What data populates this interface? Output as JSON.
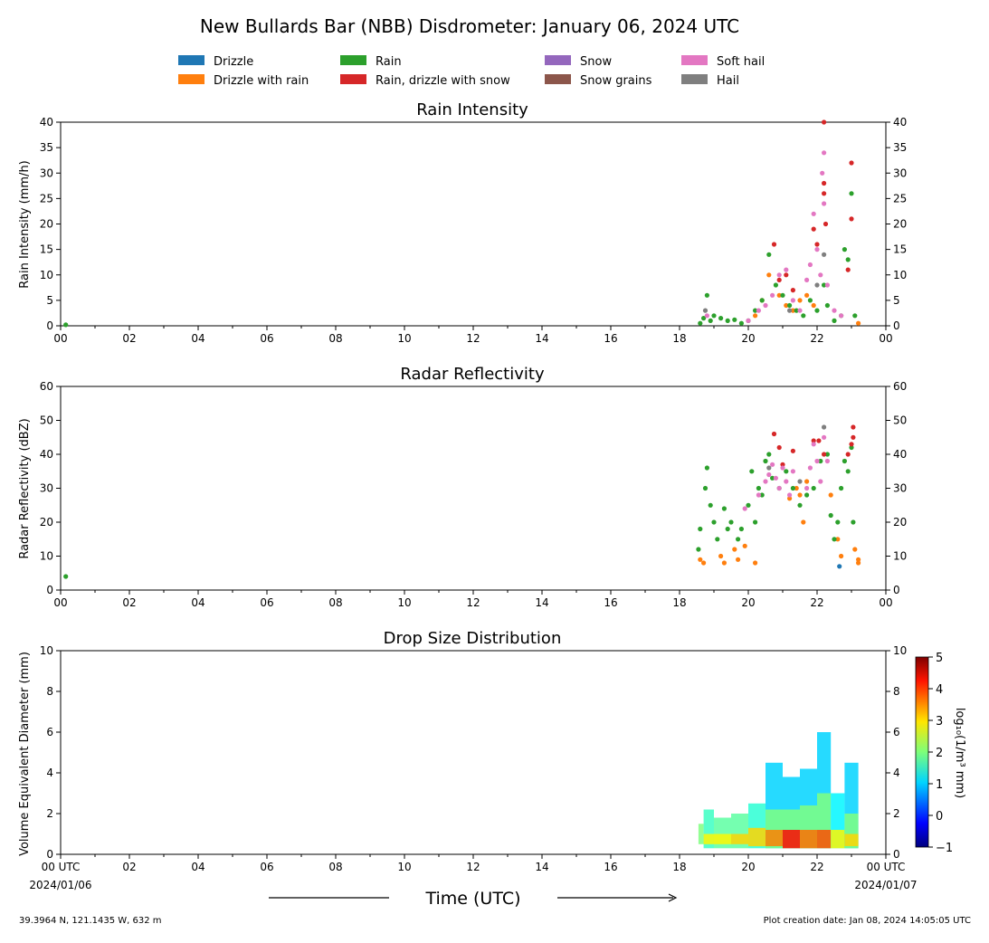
{
  "figure": {
    "title": "New Bullards Bar (NBB) Disdrometer: January 06, 2024 UTC",
    "xlabel": "Time (UTC)",
    "footer_left": "39.3964 N, 121.1435 W, 632 m",
    "footer_right": "Plot creation date: Jan 08, 2024 14:05:05 UTC"
  },
  "legend": {
    "placement": "top-center",
    "entries": [
      {
        "label": "Drizzle",
        "color": "#1f77b4"
      },
      {
        "label": "Drizzle with rain",
        "color": "#ff7f0e"
      },
      {
        "label": "Rain",
        "color": "#2ca02c"
      },
      {
        "label": "Rain, drizzle with snow",
        "color": "#d62728"
      },
      {
        "label": "Snow",
        "color": "#9467bd"
      },
      {
        "label": "Snow grains",
        "color": "#8c564b"
      },
      {
        "label": "Soft hail",
        "color": "#e377c2"
      },
      {
        "label": "Hail",
        "color": "#7f7f7f"
      }
    ]
  },
  "x_axis": {
    "range_hours": [
      0,
      24
    ],
    "tick_labels": [
      "00",
      "02",
      "04",
      "06",
      "08",
      "10",
      "12",
      "14",
      "16",
      "18",
      "20",
      "22",
      "00"
    ],
    "bottom_tick_labels": [
      "00 UTC",
      "02",
      "04",
      "06",
      "08",
      "10",
      "12",
      "14",
      "16",
      "18",
      "20",
      "22",
      "00 UTC"
    ],
    "start_date": "2024/01/06",
    "end_date": "2024/01/07"
  },
  "chart_data": [
    {
      "type": "scatter",
      "title": "Rain Intensity",
      "ylabel": "Rain Intensity (mm/h)",
      "ylim": [
        0,
        40
      ],
      "yticks": [
        0,
        5,
        10,
        15,
        20,
        25,
        30,
        35,
        40
      ],
      "x_units": "hours UTC",
      "series": [
        {
          "name": "Drizzle",
          "x": [],
          "y": []
        },
        {
          "name": "Drizzle with rain",
          "x": [
            20.2,
            20.4,
            20.6,
            20.9,
            21.1,
            21.3,
            21.5,
            21.7,
            21.9,
            23.2
          ],
          "y": [
            2,
            5,
            10,
            6,
            4,
            3,
            5,
            6,
            4,
            0.5
          ]
        },
        {
          "name": "Rain",
          "x": [
            0.15,
            18.6,
            18.7,
            18.8,
            18.9,
            19.0,
            19.2,
            19.4,
            19.6,
            19.8,
            20.0,
            20.2,
            20.4,
            20.6,
            20.8,
            21.0,
            21.2,
            21.4,
            21.6,
            21.8,
            22.0,
            22.2,
            22.3,
            22.5,
            22.7,
            22.8,
            22.9,
            23.0,
            23.1
          ],
          "y": [
            0.2,
            0.5,
            1.5,
            6,
            1,
            2,
            1.5,
            1,
            1.2,
            0.5,
            1,
            3,
            5,
            14,
            8,
            6,
            4,
            3,
            2,
            5,
            3,
            8,
            4,
            1,
            2,
            15,
            13,
            26,
            2
          ]
        },
        {
          "name": "Rain, drizzle with snow",
          "x": [
            20.75,
            20.9,
            21.1,
            21.3,
            21.9,
            22.0,
            22.2,
            22.2,
            22.2,
            22.25,
            22.9,
            23.0,
            23.0
          ],
          "y": [
            16,
            9,
            10,
            7,
            19,
            16,
            40,
            28,
            26,
            20,
            11,
            32,
            21
          ]
        },
        {
          "name": "Snow",
          "x": [],
          "y": []
        },
        {
          "name": "Snow grains",
          "x": [],
          "y": []
        },
        {
          "name": "Soft hail",
          "x": [
            18.8,
            20.0,
            20.3,
            20.5,
            20.7,
            20.9,
            21.1,
            21.3,
            21.5,
            21.7,
            21.8,
            21.9,
            22.0,
            22.1,
            22.15,
            22.2,
            22.2,
            22.3,
            22.5,
            22.7
          ],
          "y": [
            2,
            1,
            3,
            4,
            6,
            10,
            11,
            5,
            3,
            9,
            12,
            22,
            15,
            10,
            30,
            34,
            24,
            8,
            3,
            2
          ]
        },
        {
          "name": "Hail",
          "x": [
            18.75,
            21.2,
            22.0,
            22.2
          ],
          "y": [
            3,
            3,
            8,
            14
          ]
        }
      ]
    },
    {
      "type": "scatter",
      "title": "Radar Reflectivity",
      "ylabel": "Radar Reflectivity (dBZ)",
      "ylim": [
        0,
        60
      ],
      "yticks": [
        0,
        10,
        20,
        30,
        40,
        50,
        60
      ],
      "x_units": "hours UTC",
      "series": [
        {
          "name": "Drizzle",
          "x": [
            22.65
          ],
          "y": [
            7
          ]
        },
        {
          "name": "Drizzle with rain",
          "x": [
            18.6,
            18.7,
            19.2,
            19.3,
            19.6,
            19.7,
            19.9,
            20.2,
            21.2,
            21.4,
            21.5,
            21.6,
            21.7,
            22.4,
            22.6,
            22.7,
            23.1,
            23.2,
            23.2
          ],
          "y": [
            9,
            8,
            10,
            8,
            12,
            9,
            13,
            8,
            27,
            30,
            28,
            20,
            32,
            28,
            15,
            10,
            12,
            8,
            9
          ]
        },
        {
          "name": "Rain",
          "x": [
            0.15,
            18.55,
            18.6,
            18.75,
            18.8,
            18.9,
            19.0,
            19.1,
            19.3,
            19.4,
            19.5,
            19.7,
            19.8,
            20.0,
            20.1,
            20.2,
            20.3,
            20.4,
            20.5,
            20.6,
            20.7,
            20.9,
            21.1,
            21.3,
            21.5,
            21.7,
            21.9,
            22.1,
            22.3,
            22.4,
            22.5,
            22.6,
            22.7,
            22.8,
            22.9,
            23.0,
            23.05
          ],
          "y": [
            4,
            12,
            18,
            30,
            36,
            25,
            20,
            15,
            24,
            18,
            20,
            15,
            18,
            25,
            35,
            20,
            30,
            28,
            38,
            40,
            33,
            30,
            35,
            30,
            25,
            28,
            30,
            38,
            40,
            22,
            15,
            20,
            30,
            38,
            35,
            42,
            20
          ]
        },
        {
          "name": "Rain, drizzle with snow",
          "x": [
            20.75,
            20.9,
            21.0,
            21.3,
            21.9,
            22.05,
            22.2,
            22.9,
            23.0,
            23.05,
            23.05
          ],
          "y": [
            46,
            42,
            37,
            41,
            44,
            44,
            40,
            40,
            43,
            48,
            45
          ]
        },
        {
          "name": "Snow",
          "x": [],
          "y": []
        },
        {
          "name": "Snow grains",
          "x": [],
          "y": []
        },
        {
          "name": "Soft hail",
          "x": [
            19.9,
            20.3,
            20.5,
            20.6,
            20.7,
            20.8,
            20.9,
            21.0,
            21.1,
            21.2,
            21.3,
            21.7,
            21.8,
            21.9,
            22.0,
            22.1,
            22.2,
            22.3
          ],
          "y": [
            24,
            28,
            32,
            34,
            37,
            33,
            30,
            36,
            32,
            28,
            35,
            30,
            36,
            43,
            38,
            32,
            45,
            38
          ]
        },
        {
          "name": "Hail",
          "x": [
            20.6,
            21.5,
            22.2
          ],
          "y": [
            36,
            32,
            48
          ]
        }
      ]
    },
    {
      "type": "heatmap",
      "title": "Drop Size Distribution",
      "ylabel": "Volume Equivalent Diameter (mm)",
      "ylim": [
        0,
        10
      ],
      "yticks": [
        0,
        2,
        4,
        6,
        8,
        10
      ],
      "x_units": "hours UTC",
      "colorbar": {
        "label": "log₁₀(1/m³ mm)",
        "range": [
          -1,
          5
        ],
        "ticks": [
          "5",
          "4",
          "3",
          "2",
          "1",
          "0",
          "−1"
        ],
        "colormap": "jet"
      },
      "cells": [
        {
          "x0": 18.55,
          "x1": 18.7,
          "y0": 0.5,
          "y1": 1.5,
          "v": 2.0
        },
        {
          "x0": 18.7,
          "x1": 19.0,
          "y0": 0.3,
          "y1": 2.2,
          "v": 1.6
        },
        {
          "x0": 18.7,
          "x1": 19.0,
          "y0": 0.5,
          "y1": 1.0,
          "v": 2.8
        },
        {
          "x0": 19.0,
          "x1": 19.5,
          "y0": 0.3,
          "y1": 1.8,
          "v": 1.8
        },
        {
          "x0": 19.0,
          "x1": 19.5,
          "y0": 0.5,
          "y1": 1.0,
          "v": 2.8
        },
        {
          "x0": 19.5,
          "x1": 20.0,
          "y0": 0.3,
          "y1": 2.0,
          "v": 1.8
        },
        {
          "x0": 19.5,
          "x1": 20.0,
          "y0": 0.5,
          "y1": 1.0,
          "v": 3.0
        },
        {
          "x0": 20.0,
          "x1": 20.5,
          "y0": 0.3,
          "y1": 2.5,
          "v": 1.5
        },
        {
          "x0": 20.0,
          "x1": 20.5,
          "y0": 0.4,
          "y1": 1.3,
          "v": 3.0
        },
        {
          "x0": 20.5,
          "x1": 21.0,
          "y0": 0.3,
          "y1": 4.5,
          "v": 1.0
        },
        {
          "x0": 20.5,
          "x1": 21.0,
          "y0": 0.3,
          "y1": 2.2,
          "v": 2.0
        },
        {
          "x0": 20.5,
          "x1": 21.0,
          "y0": 0.4,
          "y1": 1.2,
          "v": 3.5
        },
        {
          "x0": 21.0,
          "x1": 21.5,
          "y0": 0.3,
          "y1": 3.8,
          "v": 1.0
        },
        {
          "x0": 21.0,
          "x1": 21.5,
          "y0": 0.3,
          "y1": 2.2,
          "v": 2.0
        },
        {
          "x0": 21.0,
          "x1": 21.5,
          "y0": 0.3,
          "y1": 1.2,
          "v": 4.2
        },
        {
          "x0": 21.5,
          "x1": 22.0,
          "y0": 0.3,
          "y1": 4.2,
          "v": 1.0
        },
        {
          "x0": 21.5,
          "x1": 22.0,
          "y0": 0.3,
          "y1": 2.4,
          "v": 2.0
        },
        {
          "x0": 21.5,
          "x1": 22.0,
          "y0": 0.3,
          "y1": 1.2,
          "v": 3.6
        },
        {
          "x0": 22.0,
          "x1": 22.4,
          "y0": 0.3,
          "y1": 6.0,
          "v": 1.0
        },
        {
          "x0": 22.0,
          "x1": 22.4,
          "y0": 0.3,
          "y1": 3.0,
          "v": 2.0
        },
        {
          "x0": 22.0,
          "x1": 22.4,
          "y0": 0.3,
          "y1": 1.2,
          "v": 3.8
        },
        {
          "x0": 22.4,
          "x1": 22.8,
          "y0": 0.3,
          "y1": 3.0,
          "v": 1.2
        },
        {
          "x0": 22.4,
          "x1": 22.8,
          "y0": 0.3,
          "y1": 1.2,
          "v": 2.8
        },
        {
          "x0": 22.8,
          "x1": 23.2,
          "y0": 0.3,
          "y1": 4.5,
          "v": 1.0
        },
        {
          "x0": 22.8,
          "x1": 23.2,
          "y0": 0.3,
          "y1": 2.0,
          "v": 2.0
        },
        {
          "x0": 22.8,
          "x1": 23.2,
          "y0": 0.4,
          "y1": 1.0,
          "v": 3.0
        }
      ]
    }
  ]
}
